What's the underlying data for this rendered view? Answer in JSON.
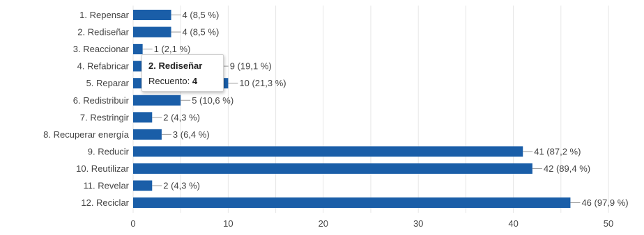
{
  "chart_data": {
    "type": "bar",
    "orientation": "horizontal",
    "title": "",
    "xlabel": "",
    "ylabel": "",
    "categories": [
      "1. Repensar",
      "2. Rediseñar",
      "3. Reaccionar",
      "4. Refabricar",
      "5. Reparar",
      "6. Redistribuir",
      "7. Restringir",
      "8. Recuperar energía",
      "9. Reducir",
      "10. Reutilizar",
      "11. Revelar",
      "12. Reciclar"
    ],
    "values": [
      4,
      4,
      1,
      9,
      10,
      5,
      2,
      3,
      41,
      42,
      2,
      46
    ],
    "data_labels": [
      "4 (8,5 %)",
      "4 (8,5 %)",
      "1 (2,1 %)",
      "9 (19,1 %)",
      "10 (21,3 %)",
      "5 (10,6 %)",
      "2 (4,3 %)",
      "3 (6,4 %)",
      "41 (87,2 %)",
      "42 (89,4 %)",
      "2 (4,3 %)",
      "46 (97,9 %)"
    ],
    "xlim": [
      0,
      50
    ],
    "xticks": [
      0,
      10,
      20,
      30,
      40,
      50
    ],
    "grid": true,
    "legend": "none",
    "bar_color": "#1a5ea8"
  },
  "tooltip": {
    "category": "2. Rediseñar",
    "label": "Recuento:",
    "value": "4"
  },
  "colors": {
    "bar": "#1a5ea8",
    "grid": "#e6e6e6",
    "text": "#444444",
    "connector": "#999999"
  }
}
